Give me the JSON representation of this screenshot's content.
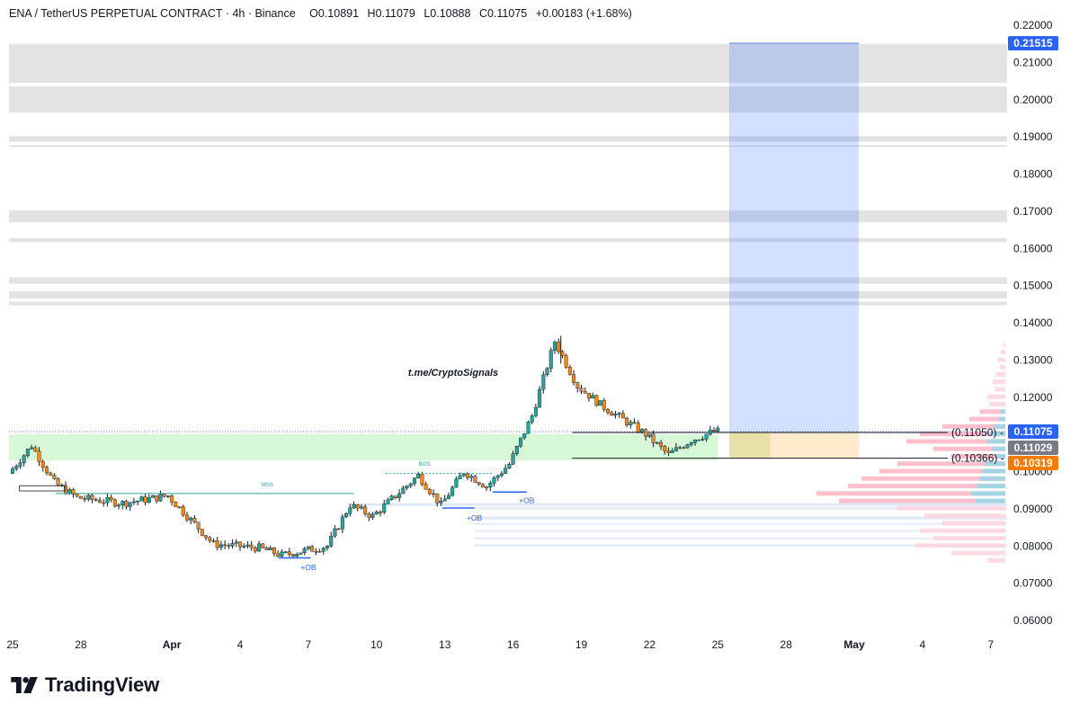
{
  "header": {
    "symbol": "ENA / TetherUS PERPETUAL CONTRACT",
    "interval": "4h",
    "exchange": "Binance",
    "open": "O0.10891",
    "high": "H0.11079",
    "low": "L0.10888",
    "close": "C0.11075",
    "change": "+0.00183 (+1.68%)"
  },
  "watermark": "t.me/CryptoSignals",
  "brand": "TradingView",
  "colors": {
    "up": "#26a69a",
    "down": "#ef8a1e",
    "wick": "#131722",
    "target_zone": "#2962ff",
    "loss_zone": "#ff9800",
    "demand_zone": "#c8f5c8",
    "price_tag_current": "#2962ff",
    "price_tag_grey": "#787b86",
    "price_tag_orange": "#f57c00"
  },
  "chart_data": {
    "type": "candlestick",
    "symbol": "ENA/USDT Perpetual",
    "timeframe": "4h",
    "y_axis": {
      "ticks": [
        "0.22000",
        "0.21000",
        "0.20000",
        "0.19000",
        "0.18000",
        "0.17000",
        "0.16000",
        "0.15000",
        "0.14000",
        "0.13000",
        "0.12000",
        "0.11000",
        "0.10000",
        "0.09000",
        "0.08000",
        "0.07000",
        "0.06000"
      ],
      "range": [
        0.055,
        0.225
      ]
    },
    "x_axis": {
      "ticks": [
        {
          "label": "25",
          "bold": false
        },
        {
          "label": "28",
          "bold": false
        },
        {
          "label": "Apr",
          "bold": true
        },
        {
          "label": "4",
          "bold": false
        },
        {
          "label": "7",
          "bold": false
        },
        {
          "label": "10",
          "bold": false
        },
        {
          "label": "13",
          "bold": false
        },
        {
          "label": "16",
          "bold": false
        },
        {
          "label": "19",
          "bold": false
        },
        {
          "label": "22",
          "bold": false
        },
        {
          "label": "25",
          "bold": false
        },
        {
          "label": "28",
          "bold": false
        },
        {
          "label": "May",
          "bold": true
        },
        {
          "label": "4",
          "bold": false
        },
        {
          "label": "7",
          "bold": false
        }
      ]
    },
    "price_series_approx": [
      {
        "date": "Mar 25",
        "price": 0.0995
      },
      {
        "date": "Mar 26",
        "price": 0.107
      },
      {
        "date": "Mar 27",
        "price": 0.097
      },
      {
        "date": "Mar 28",
        "price": 0.093
      },
      {
        "date": "Mar 30",
        "price": 0.0915
      },
      {
        "date": "Apr 1",
        "price": 0.0935
      },
      {
        "date": "Apr 3",
        "price": 0.0805
      },
      {
        "date": "Apr 5",
        "price": 0.0795
      },
      {
        "date": "Apr 6",
        "price": 0.0775
      },
      {
        "date": "Apr 8",
        "price": 0.08
      },
      {
        "date": "Apr 9",
        "price": 0.091
      },
      {
        "date": "Apr 10",
        "price": 0.088
      },
      {
        "date": "Apr 12",
        "price": 0.099
      },
      {
        "date": "Apr 13",
        "price": 0.091
      },
      {
        "date": "Apr 14",
        "price": 0.1
      },
      {
        "date": "Apr 15",
        "price": 0.096
      },
      {
        "date": "Apr 16",
        "price": 0.102
      },
      {
        "date": "Apr 17",
        "price": 0.115
      },
      {
        "date": "Apr 18",
        "price": 0.135
      },
      {
        "date": "Apr 19",
        "price": 0.123
      },
      {
        "date": "Apr 20",
        "price": 0.118
      },
      {
        "date": "Apr 22",
        "price": 0.11
      },
      {
        "date": "Apr 23",
        "price": 0.1045
      },
      {
        "date": "Apr 24",
        "price": 0.1085
      },
      {
        "date": "Apr 25",
        "price": 0.1108
      }
    ],
    "horizontal_zones": [
      {
        "low": 0.2045,
        "high": 0.215
      },
      {
        "low": 0.1965,
        "high": 0.2035
      },
      {
        "low": 0.1887,
        "high": 0.1902
      },
      {
        "low": 0.167,
        "high": 0.1702
      },
      {
        "low": 0.1617,
        "high": 0.1627
      },
      {
        "low": 0.1505,
        "high": 0.1522
      },
      {
        "low": 0.1465,
        "high": 0.1485
      },
      {
        "low": 0.1447,
        "high": 0.1457
      }
    ],
    "demand_zone": {
      "low": 0.103,
      "high": 0.11
    },
    "position": {
      "entry": 0.1105,
      "stop": 0.1036,
      "target": 0.21515
    },
    "price_labels": {
      "target": "0.21515",
      "last": "0.11075",
      "grey": "0.11029",
      "stop": "0.10319",
      "entry_line": "(0.11050)",
      "stop_line": "(0.10366)"
    },
    "annotations": {
      "mss": "MSS",
      "bos": "BOS",
      "ob": [
        "+OB",
        "+OB",
        "+OB"
      ]
    }
  }
}
